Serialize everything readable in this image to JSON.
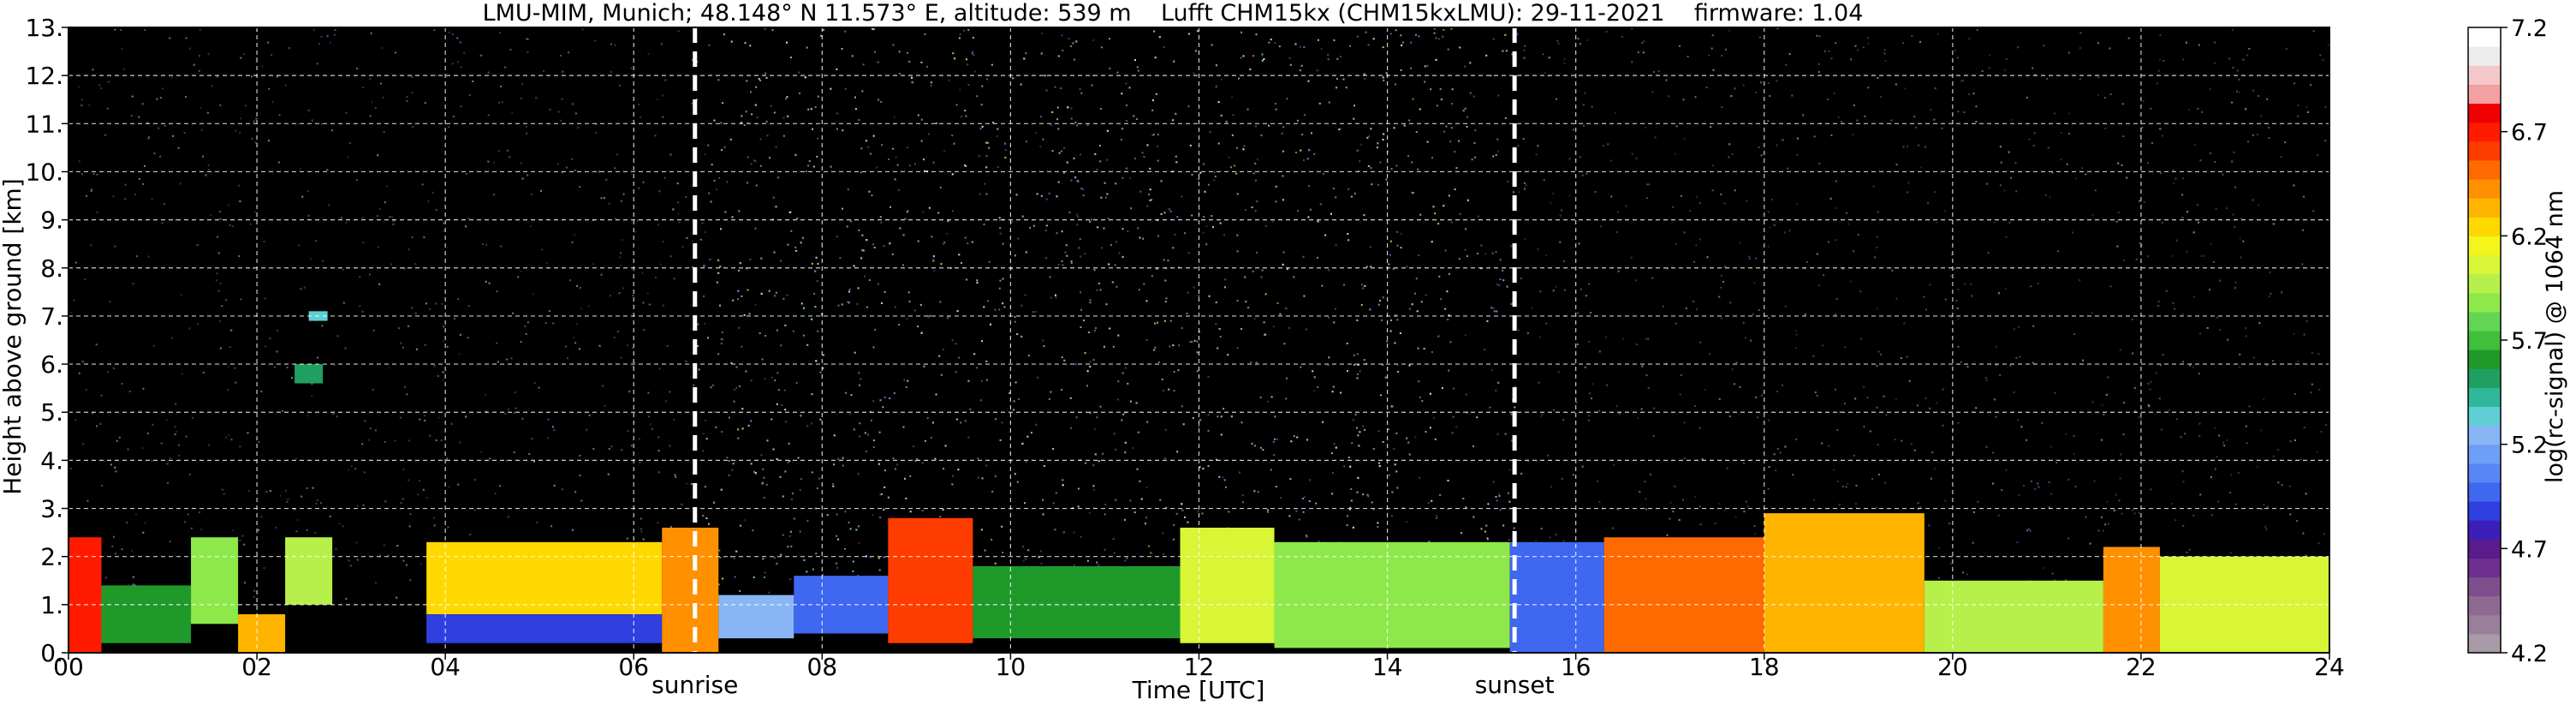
{
  "chart_data": {
    "type": "heatmap",
    "title": "LMU-MIM, Munich; 48.148° N 11.573° E, altitude: 539 m    Lufft CHM15kx (CHM15kxLMU): 29-11-2021    firmware: 1.04",
    "xlabel": "Time [UTC]",
    "ylabel": "Height above ground [km]",
    "xlim": [
      0,
      24
    ],
    "ylim": [
      0,
      13
    ],
    "x_ticks": [
      "00",
      "02",
      "04",
      "06",
      "08",
      "10",
      "12",
      "14",
      "16",
      "18",
      "20",
      "22",
      "24"
    ],
    "x_tick_values": [
      0,
      2,
      4,
      6,
      8,
      10,
      12,
      14,
      16,
      18,
      20,
      22,
      24
    ],
    "y_ticks": [
      "0.",
      "1.",
      "2.",
      "3.",
      "4.",
      "5.",
      "6.",
      "7.",
      "8.",
      "9.",
      "10.",
      "11.",
      "12.",
      "13."
    ],
    "y_tick_values": [
      0,
      1,
      2,
      3,
      4,
      5,
      6,
      7,
      8,
      9,
      10,
      11,
      12,
      13
    ],
    "grid": true,
    "markers": [
      {
        "label": "sunrise",
        "x": 6.65
      },
      {
        "label": "sunset",
        "x": 15.35
      }
    ],
    "colorbar": {
      "label": "log(rc-signal) @ 1064 nm",
      "range": [
        4.2,
        7.2
      ],
      "ticks": [
        "4.2",
        "4.7",
        "5.2",
        "5.7",
        "6.2",
        "6.7",
        "7.2"
      ],
      "tick_values": [
        4.2,
        4.7,
        5.2,
        5.7,
        6.2,
        6.7,
        7.2
      ],
      "colors": [
        "#a89aa6",
        "#9a7f9a",
        "#8e6a93",
        "#7f4e8f",
        "#6e2f8f",
        "#5a1b8c",
        "#3c1fb8",
        "#2f3fe0",
        "#3f67f0",
        "#5a86f5",
        "#6f9ef7",
        "#88b6f5",
        "#5fcfd6",
        "#2fb89a",
        "#20a060",
        "#1f9a2a",
        "#3fbf3a",
        "#62d653",
        "#8ee84a",
        "#b7f04a",
        "#d8f536",
        "#f5f51c",
        "#ffd800",
        "#ffb400",
        "#ff9100",
        "#ff6a00",
        "#ff3c00",
        "#ff1a00",
        "#f00000",
        "#f3a0a0",
        "#f4c8c8",
        "#ececec",
        "#ffffff"
      ]
    },
    "regions": [
      {
        "x0": 0.0,
        "x1": 0.35,
        "y0": 0.0,
        "y1": 2.4,
        "value": 6.7
      },
      {
        "x0": 0.35,
        "x1": 1.3,
        "y0": 0.2,
        "y1": 1.4,
        "value": 5.6
      },
      {
        "x0": 1.3,
        "x1": 1.8,
        "y0": 0.6,
        "y1": 2.4,
        "value": 5.9
      },
      {
        "x0": 1.8,
        "x1": 2.3,
        "y0": 0.0,
        "y1": 0.8,
        "value": 6.3
      },
      {
        "x0": 2.3,
        "x1": 2.8,
        "y0": 1.0,
        "y1": 2.4,
        "value": 6.0
      },
      {
        "x0": 2.4,
        "x1": 2.7,
        "y0": 5.6,
        "y1": 6.0,
        "value": 5.5
      },
      {
        "x0": 2.55,
        "x1": 2.75,
        "y0": 6.9,
        "y1": 7.1,
        "value": 5.3
      },
      {
        "x0": 3.8,
        "x1": 6.3,
        "y0": 0.8,
        "y1": 2.3,
        "value": 6.2
      },
      {
        "x0": 3.8,
        "x1": 6.3,
        "y0": 0.2,
        "y1": 0.8,
        "value": 4.9
      },
      {
        "x0": 6.3,
        "x1": 6.9,
        "y0": 0.0,
        "y1": 2.6,
        "value": 6.4
      },
      {
        "x0": 6.9,
        "x1": 7.7,
        "y0": 0.3,
        "y1": 1.2,
        "value": 5.2
      },
      {
        "x0": 7.7,
        "x1": 8.7,
        "y0": 0.4,
        "y1": 1.6,
        "value": 5.0
      },
      {
        "x0": 8.7,
        "x1": 9.6,
        "y0": 0.2,
        "y1": 2.8,
        "value": 6.6
      },
      {
        "x0": 9.6,
        "x1": 11.8,
        "y0": 0.3,
        "y1": 1.8,
        "value": 5.6
      },
      {
        "x0": 11.8,
        "x1": 12.8,
        "y0": 0.2,
        "y1": 2.6,
        "value": 6.1
      },
      {
        "x0": 12.8,
        "x1": 15.3,
        "y0": 0.1,
        "y1": 2.3,
        "value": 5.9
      },
      {
        "x0": 15.3,
        "x1": 16.3,
        "y0": 0.0,
        "y1": 2.3,
        "value": 5.0
      },
      {
        "x0": 16.3,
        "x1": 18.0,
        "y0": 0.0,
        "y1": 2.4,
        "value": 6.5
      },
      {
        "x0": 18.0,
        "x1": 19.7,
        "y0": 0.0,
        "y1": 2.9,
        "value": 6.3
      },
      {
        "x0": 19.7,
        "x1": 21.6,
        "y0": 0.0,
        "y1": 1.5,
        "value": 6.0
      },
      {
        "x0": 21.6,
        "x1": 22.2,
        "y0": 0.0,
        "y1": 2.2,
        "value": 6.4
      },
      {
        "x0": 22.2,
        "x1": 24.0,
        "y0": 0.0,
        "y1": 2.0,
        "value": 6.1
      }
    ]
  }
}
